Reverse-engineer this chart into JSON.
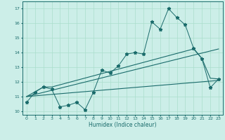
{
  "line1_x": [
    0,
    1,
    2,
    3,
    4,
    5,
    6,
    7,
    8,
    9,
    10,
    11,
    12,
    13,
    14,
    15,
    16,
    17,
    18,
    19,
    20,
    21,
    22,
    23
  ],
  "line1_y": [
    10.6,
    11.3,
    11.65,
    11.5,
    10.3,
    10.4,
    10.6,
    10.1,
    11.3,
    12.8,
    12.6,
    13.1,
    13.9,
    14.0,
    13.9,
    16.1,
    15.6,
    17.0,
    16.4,
    15.9,
    14.3,
    13.6,
    11.6,
    12.2
  ],
  "line2_x": [
    0,
    2,
    3,
    20,
    21,
    22,
    23
  ],
  "line2_y": [
    11.0,
    11.65,
    11.65,
    14.25,
    13.6,
    12.25,
    12.2
  ],
  "line3_x": [
    0,
    23
  ],
  "line3_y": [
    11.0,
    12.1
  ],
  "line4_x": [
    0,
    23
  ],
  "line4_y": [
    11.0,
    14.25
  ],
  "color": "#1a6b6b",
  "bg_color": "#cceee8",
  "grid_color": "#aaddcc",
  "xlabel": "Humidex (Indice chaleur)",
  "ylabel_ticks": [
    10,
    11,
    12,
    13,
    14,
    15,
    16,
    17
  ],
  "xlim": [
    -0.5,
    23.5
  ],
  "ylim": [
    9.75,
    17.5
  ],
  "marker": "*",
  "markersize": 3.5
}
